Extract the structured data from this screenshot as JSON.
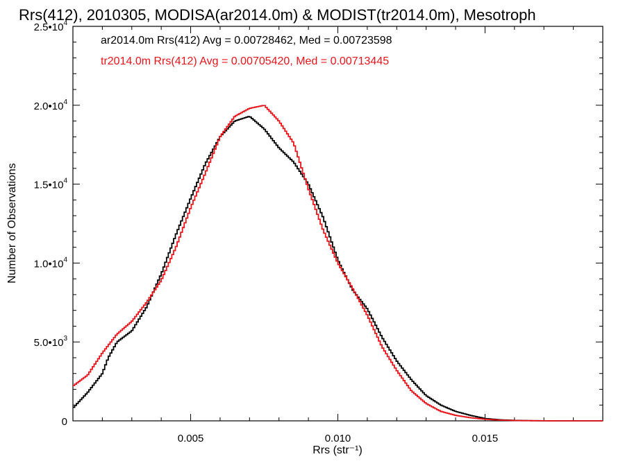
{
  "chart_data": {
    "type": "line",
    "title": "Rrs(412), 2010305, MODISA(ar2014.0m) & MODIST(tr2014.0m), Mesotroph",
    "xlabel": "Rrs (str⁻¹)",
    "ylabel": "Number of Observations",
    "xlim": [
      0.001,
      0.019
    ],
    "ylim": [
      0,
      25000
    ],
    "grid": false,
    "legend_placement": "top-left",
    "x_ticks": [
      {
        "value": 0.005,
        "label": "0.005"
      },
      {
        "value": 0.01,
        "label": "0.010"
      },
      {
        "value": 0.015,
        "label": "0.015"
      }
    ],
    "y_ticks": [
      {
        "value": 0,
        "label": "0",
        "mant": "0",
        "exp": ""
      },
      {
        "value": 5000,
        "label": "5.0•10^3",
        "mant": "5.0•10",
        "exp": "3"
      },
      {
        "value": 10000,
        "label": "1.0•10^4",
        "mant": "1.0•10",
        "exp": "4"
      },
      {
        "value": 15000,
        "label": "1.5•10^4",
        "mant": "1.5•10",
        "exp": "4"
      },
      {
        "value": 20000,
        "label": "2.0•10^4",
        "mant": "2.0•10",
        "exp": "4"
      },
      {
        "value": 25000,
        "label": "2.5•10^4",
        "mant": "2.5•10",
        "exp": "4"
      }
    ],
    "series": [
      {
        "name": "ar2014.0m Rrs(412) Avg = 0.00728462, Med = 0.00723598",
        "color": "#000000",
        "x": [
          0.001,
          0.0015,
          0.002,
          0.0022,
          0.0025,
          0.003,
          0.0035,
          0.004,
          0.0045,
          0.005,
          0.0055,
          0.006,
          0.0065,
          0.007,
          0.0075,
          0.008,
          0.0085,
          0.009,
          0.0095,
          0.01,
          0.0105,
          0.011,
          0.0115,
          0.012,
          0.0125,
          0.013,
          0.0135,
          0.014,
          0.0145,
          0.015,
          0.0155,
          0.016,
          0.0165,
          0.017,
          0.0175,
          0.018,
          0.0185,
          0.019
        ],
        "y": [
          800,
          1800,
          3000,
          4000,
          5000,
          5700,
          7200,
          9300,
          11800,
          14100,
          16300,
          18000,
          19000,
          19300,
          18500,
          17300,
          16400,
          15000,
          12900,
          10200,
          8300,
          7100,
          5300,
          3800,
          2600,
          1600,
          1000,
          600,
          350,
          150,
          70,
          30,
          15,
          5,
          0,
          0,
          0,
          0
        ]
      },
      {
        "name": "tr2014.0m Rrs(412) Avg = 0.00705420, Med = 0.00713445",
        "color": "#e8141a",
        "x": [
          0.001,
          0.0015,
          0.002,
          0.0025,
          0.003,
          0.0035,
          0.004,
          0.0045,
          0.005,
          0.0055,
          0.006,
          0.0065,
          0.007,
          0.0075,
          0.008,
          0.0085,
          0.009,
          0.0095,
          0.01,
          0.0105,
          0.011,
          0.0115,
          0.012,
          0.0125,
          0.013,
          0.0135,
          0.014,
          0.0145,
          0.015,
          0.0155,
          0.016,
          0.0165,
          0.017,
          0.0175,
          0.018,
          0.0185,
          0.019
        ],
        "y": [
          2200,
          2900,
          4300,
          5500,
          6300,
          7500,
          8900,
          11000,
          13500,
          15700,
          18000,
          19300,
          19800,
          20000,
          19000,
          17600,
          14700,
          12100,
          10000,
          8400,
          6700,
          4700,
          3200,
          1900,
          1100,
          600,
          350,
          200,
          100,
          50,
          20,
          10,
          5,
          0,
          0,
          0,
          0
        ]
      }
    ]
  }
}
